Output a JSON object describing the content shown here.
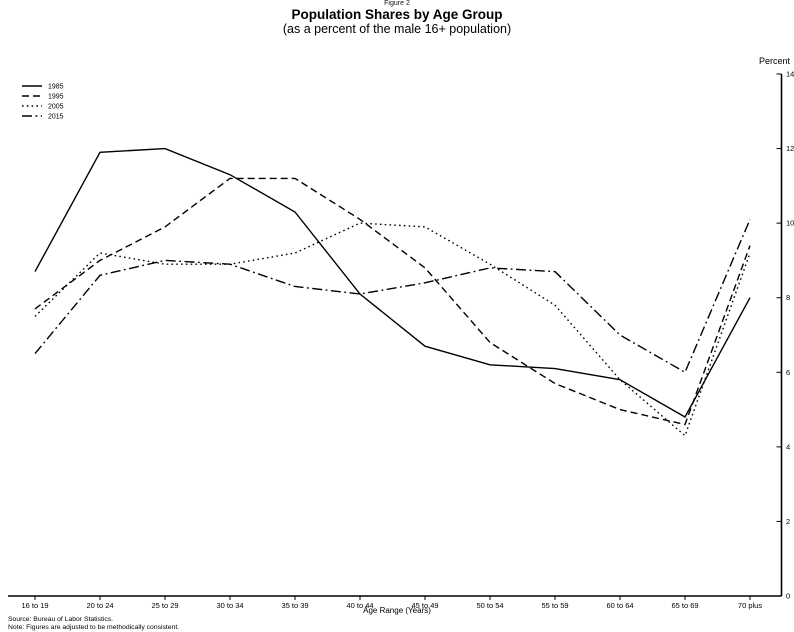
{
  "figure_label": "Figure 2",
  "title": "Population Shares by Age Group",
  "subtitle": "(as a percent of the male 16+ population)",
  "y_axis_label": "Percent",
  "x_axis_label": "Age Range (Years)",
  "source_note": "Source: Bureau of Labor Statistics.",
  "method_note": "Note: Figures are adjusted to be methodically consistent.",
  "line_color": "#000000",
  "chart_data": {
    "type": "line",
    "title": "Population Shares by Age Group",
    "subtitle": "(as a percent of the male 16+ population)",
    "xlabel": "Age Range (Years)",
    "ylabel": "Percent",
    "ylim": [
      0,
      14
    ],
    "yticks": [
      0,
      2,
      4,
      6,
      8,
      10,
      12,
      14
    ],
    "grid": false,
    "legend_position": "top-left",
    "categories": [
      "16 to 19",
      "20 to 24",
      "25 to 29",
      "30 to 34",
      "35 to 39",
      "40 to 44",
      "45 to 49",
      "50 to 54",
      "55 to 59",
      "60 to 64",
      "65 to 69",
      "70 plus"
    ],
    "series": [
      {
        "name": "1985",
        "style": "solid",
        "values": [
          8.7,
          11.9,
          12.0,
          11.3,
          10.3,
          8.1,
          6.7,
          6.2,
          6.1,
          5.8,
          4.8,
          8.0
        ]
      },
      {
        "name": "1995",
        "style": "dashed",
        "values": [
          7.7,
          9.0,
          9.9,
          11.2,
          11.2,
          10.1,
          8.8,
          6.8,
          5.7,
          5.0,
          4.6,
          9.4
        ]
      },
      {
        "name": "2005",
        "style": "dotted",
        "values": [
          7.5,
          9.2,
          8.9,
          8.9,
          9.2,
          10.0,
          9.9,
          8.9,
          7.8,
          5.8,
          4.3,
          9.2
        ]
      },
      {
        "name": "2015",
        "style": "dashdot",
        "values": [
          6.5,
          8.6,
          9.0,
          8.9,
          8.3,
          8.1,
          8.4,
          8.8,
          8.7,
          7.0,
          6.0,
          10.1
        ]
      }
    ]
  }
}
